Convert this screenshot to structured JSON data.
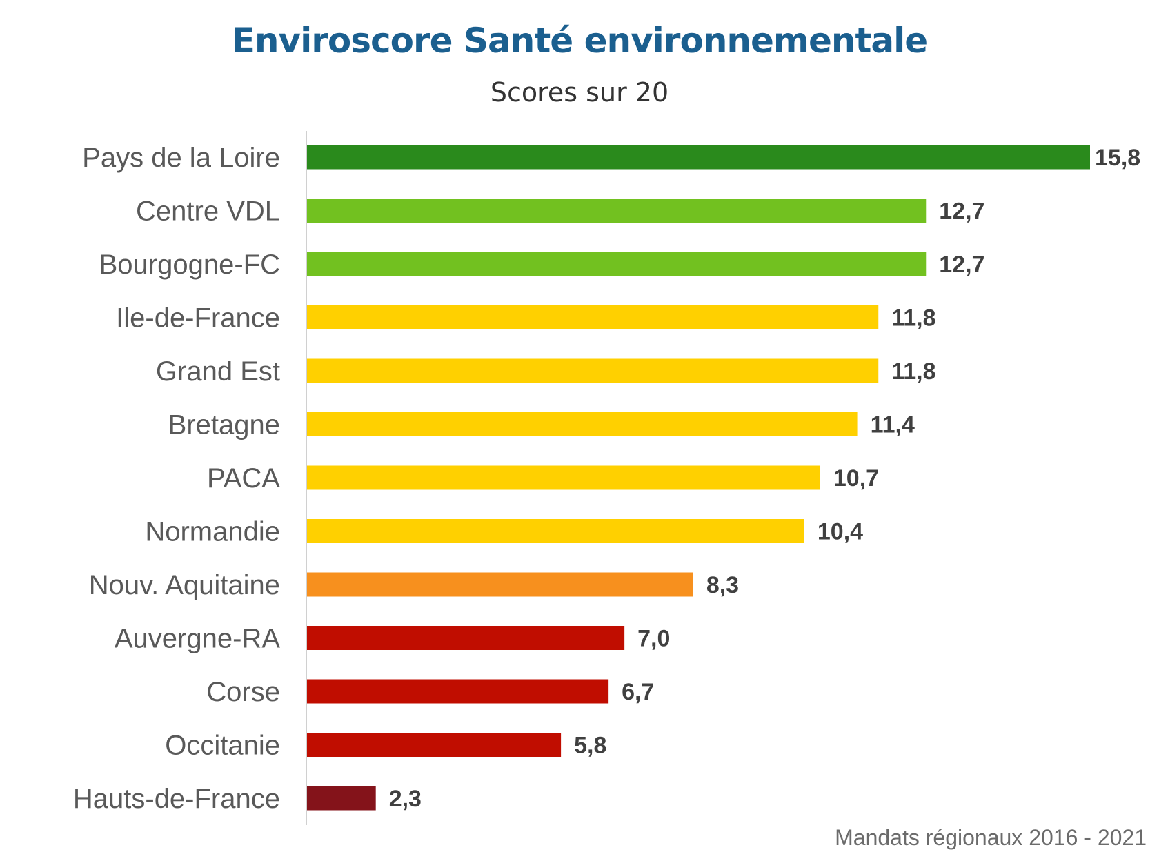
{
  "chart_data": {
    "type": "bar",
    "orientation": "horizontal",
    "title": "Enviroscore Santé environnementale",
    "subtitle": "Scores sur 20",
    "footer": "Mandats régionaux 2016 - 2021",
    "categories": [
      "Pays de la Loire",
      "Centre VDL",
      "Bourgogne-FC",
      "Ile-de-France",
      "Grand Est",
      "Bretagne",
      "PACA",
      "Normandie",
      "Nouv. Aquitaine",
      "Auvergne-RA",
      "Corse",
      "Occitanie",
      "Hauts-de-France"
    ],
    "values": [
      15.8,
      12.7,
      12.7,
      11.8,
      11.8,
      11.4,
      10.7,
      10.4,
      8.3,
      7.0,
      6.7,
      5.8,
      2.3
    ],
    "labels": [
      "15,8",
      "12,7",
      "12,7",
      "11,8",
      "11,8",
      "11,4",
      "10,7",
      "10,4",
      "8,3",
      "7,0",
      "6,7",
      "5,8",
      "2,3"
    ],
    "colors": [
      "#2a8a1c",
      "#72c120",
      "#72c120",
      "#ffd000",
      "#ffd000",
      "#ffd000",
      "#ffd000",
      "#ffd000",
      "#f7901e",
      "#c00d00",
      "#c00d00",
      "#c00d00",
      "#84131a"
    ],
    "xlim": [
      1,
      16
    ],
    "grid": false,
    "legend": "none"
  }
}
